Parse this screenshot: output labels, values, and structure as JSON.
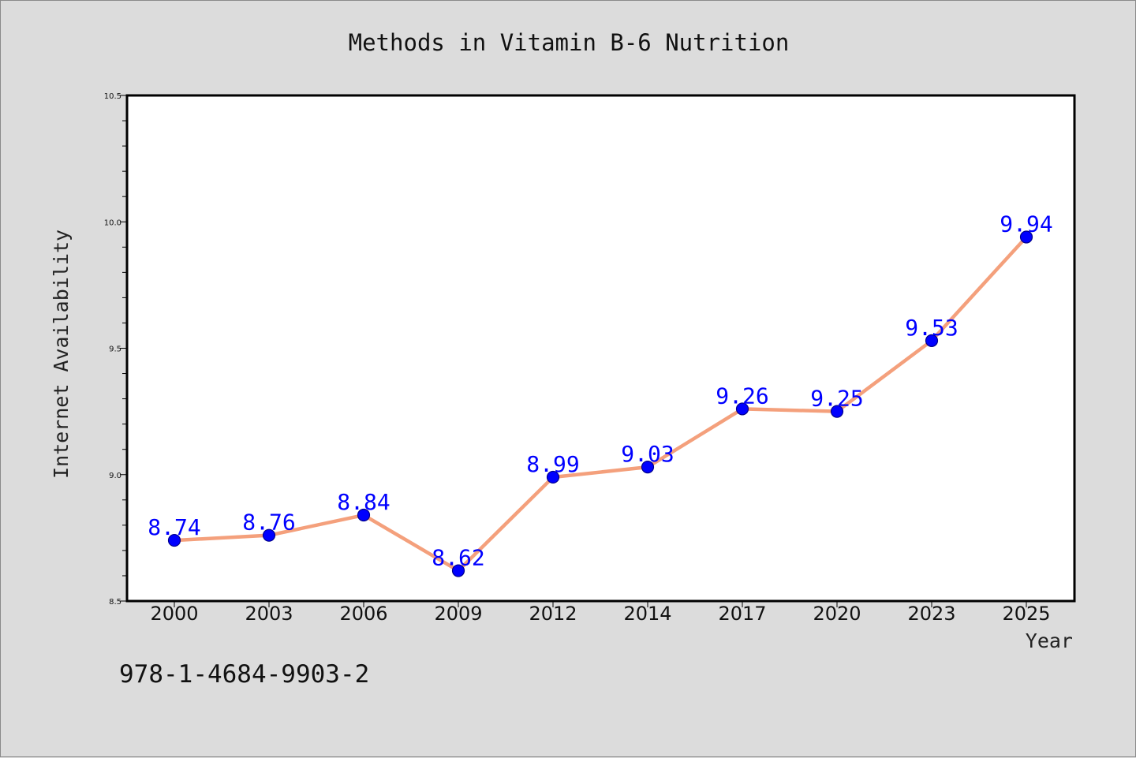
{
  "chart_data": {
    "type": "line",
    "title": "Methods in Vitamin B-6 Nutrition",
    "xlabel": "Year",
    "ylabel": "Internet Availability",
    "categories": [
      "2000",
      "2003",
      "2006",
      "2009",
      "2012",
      "2014",
      "2017",
      "2020",
      "2023",
      "2025"
    ],
    "series": [
      {
        "values": [
          8.74,
          8.76,
          8.84,
          8.62,
          8.99,
          9.03,
          9.26,
          9.25,
          9.53,
          9.94
        ],
        "data_labels": [
          "8.74",
          "8.76",
          "8.84",
          "8.62",
          "8.99",
          "9.03",
          "9.26",
          "9.25",
          "9.53",
          "9.94"
        ]
      }
    ],
    "ylim": [
      8.5,
      10.5
    ],
    "y_ticks": [
      "8.5",
      "9.0",
      "9.5",
      "10.0",
      "10.5"
    ],
    "grid": false,
    "colors": {
      "line": "#f4a07c",
      "marker_fill": "#0000ff",
      "marker_edge": "#00008b",
      "data_label": "#0000ff",
      "plot_background": "#ffffff",
      "figure_background": "#dcdcdc"
    }
  },
  "footnote": "978-1-4684-9903-2"
}
